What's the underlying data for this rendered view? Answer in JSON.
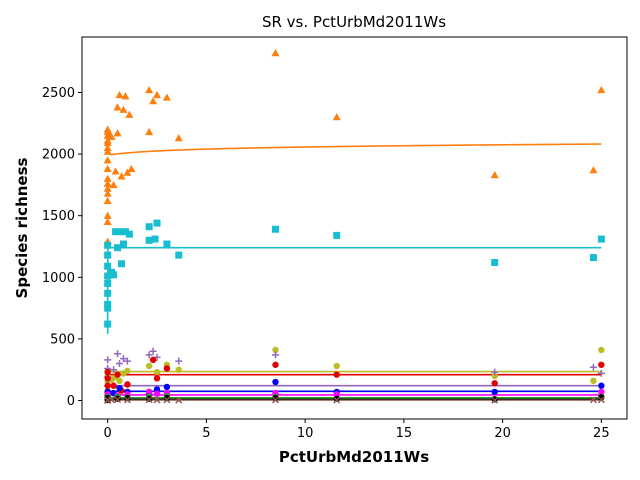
{
  "chart_data": {
    "type": "scatter",
    "title": "SR vs. PctUrbMd2011Ws",
    "xlabel": "PctUrbMd2011Ws",
    "ylabel": "Species richness",
    "xlim": [
      -1.3,
      26.3
    ],
    "ylim": [
      -150,
      2950
    ],
    "xticks": [
      0,
      5,
      10,
      15,
      20,
      25
    ],
    "yticks": [
      0,
      500,
      1000,
      1500,
      2000,
      2500
    ],
    "grid": false,
    "legend": "none",
    "series": [
      {
        "color": "#ff7f0e",
        "marker": "triangle",
        "points": [
          [
            0,
            1020
          ],
          [
            0,
            1180
          ],
          [
            0,
            1290
          ],
          [
            0,
            1450
          ],
          [
            0,
            1500
          ],
          [
            0,
            1620
          ],
          [
            0,
            1680
          ],
          [
            0,
            1720
          ],
          [
            0,
            1760
          ],
          [
            0,
            1800
          ],
          [
            0,
            1880
          ],
          [
            0,
            1950
          ],
          [
            0,
            2020
          ],
          [
            0,
            2050
          ],
          [
            0,
            2090
          ],
          [
            0,
            2110
          ],
          [
            0,
            2150
          ],
          [
            0,
            2180
          ],
          [
            0,
            2200
          ],
          [
            0.1,
            2160
          ],
          [
            0.2,
            2140
          ],
          [
            0.3,
            1750
          ],
          [
            0.4,
            1860
          ],
          [
            0.5,
            2380
          ],
          [
            0.5,
            2170
          ],
          [
            0.6,
            2480
          ],
          [
            0.7,
            1820
          ],
          [
            0.8,
            2360
          ],
          [
            0.9,
            2470
          ],
          [
            1.0,
            1850
          ],
          [
            1.1,
            2320
          ],
          [
            1.2,
            1880
          ],
          [
            2.1,
            2180
          ],
          [
            2.1,
            2520
          ],
          [
            2.3,
            2430
          ],
          [
            2.5,
            2480
          ],
          [
            3.0,
            2460
          ],
          [
            3.6,
            2130
          ],
          [
            8.5,
            2820
          ],
          [
            11.6,
            2300
          ],
          [
            19.6,
            1830
          ],
          [
            24.6,
            1870
          ],
          [
            25.0,
            2520
          ]
        ],
        "fit": {
          "a": 1990,
          "b": 28,
          "c": -25,
          "x0": 0.07
        }
      },
      {
        "color": "#17becf",
        "marker": "square",
        "points": [
          [
            0,
            620
          ],
          [
            0,
            750
          ],
          [
            0,
            780
          ],
          [
            0,
            870
          ],
          [
            0,
            950
          ],
          [
            0,
            1010
          ],
          [
            0,
            1090
          ],
          [
            0,
            1180
          ],
          [
            0,
            1260
          ],
          [
            0.2,
            1040
          ],
          [
            0.3,
            1020
          ],
          [
            0.4,
            1370
          ],
          [
            0.5,
            1240
          ],
          [
            0.6,
            1370
          ],
          [
            0.7,
            1110
          ],
          [
            0.8,
            1270
          ],
          [
            0.9,
            1370
          ],
          [
            1.1,
            1350
          ],
          [
            2.1,
            1300
          ],
          [
            2.1,
            1410
          ],
          [
            2.4,
            1310
          ],
          [
            2.5,
            1440
          ],
          [
            3.0,
            1270
          ],
          [
            3.6,
            1180
          ],
          [
            8.5,
            1390
          ],
          [
            11.6,
            1340
          ],
          [
            19.6,
            1120
          ],
          [
            24.6,
            1160
          ],
          [
            25.0,
            1310
          ]
        ],
        "fit": {
          "a": 1240,
          "b": 0,
          "c": 700,
          "x0": 0.003
        }
      },
      {
        "color": "#bcbd22",
        "marker": "circle",
        "points": [
          [
            0,
            30
          ],
          [
            0,
            80
          ],
          [
            0,
            150
          ],
          [
            0,
            200
          ],
          [
            0,
            240
          ],
          [
            0.2,
            170
          ],
          [
            0.4,
            190
          ],
          [
            0.6,
            160
          ],
          [
            0.8,
            220
          ],
          [
            1.0,
            240
          ],
          [
            2.1,
            280
          ],
          [
            2.5,
            230
          ],
          [
            3.0,
            290
          ],
          [
            3.6,
            250
          ],
          [
            8.5,
            410
          ],
          [
            11.6,
            280
          ],
          [
            19.6,
            200
          ],
          [
            24.6,
            160
          ],
          [
            25.0,
            410
          ]
        ],
        "fit": {
          "a": 235,
          "b": 0,
          "c": 195,
          "x0": 0.01
        }
      },
      {
        "color": "#9467bd",
        "marker": "plus",
        "points": [
          [
            0,
            40
          ],
          [
            0,
            120
          ],
          [
            0,
            190
          ],
          [
            0,
            260
          ],
          [
            0,
            330
          ],
          [
            0.3,
            250
          ],
          [
            0.5,
            380
          ],
          [
            0.6,
            300
          ],
          [
            0.8,
            340
          ],
          [
            1.0,
            320
          ],
          [
            2.1,
            370
          ],
          [
            2.3,
            400
          ],
          [
            2.5,
            350
          ],
          [
            3.6,
            320
          ],
          [
            8.5,
            370
          ],
          [
            19.6,
            230
          ],
          [
            24.6,
            270
          ],
          [
            25.0,
            220
          ]
        ],
        "fit": {
          "a": 120,
          "b": 0,
          "c": 5,
          "x0": 0.01
        }
      },
      {
        "color": "#e00000",
        "marker": "circle",
        "points": [
          [
            0,
            20
          ],
          [
            0,
            60
          ],
          [
            0,
            120
          ],
          [
            0,
            180
          ],
          [
            0,
            230
          ],
          [
            0.3,
            120
          ],
          [
            0.5,
            210
          ],
          [
            0.7,
            80
          ],
          [
            1.0,
            130
          ],
          [
            2.1,
            70
          ],
          [
            2.3,
            330
          ],
          [
            2.5,
            180
          ],
          [
            3.0,
            260
          ],
          [
            8.5,
            290
          ],
          [
            11.6,
            210
          ],
          [
            19.6,
            140
          ],
          [
            25.0,
            290
          ]
        ],
        "fit": {
          "a": 210,
          "b": 0,
          "c": 25,
          "x0": 0.01
        }
      },
      {
        "color": "#0000ff",
        "marker": "circle",
        "points": [
          [
            0,
            10
          ],
          [
            0,
            40
          ],
          [
            0,
            70
          ],
          [
            0.3,
            60
          ],
          [
            0.6,
            100
          ],
          [
            1.0,
            70
          ],
          [
            2.1,
            60
          ],
          [
            2.5,
            90
          ],
          [
            3.0,
            110
          ],
          [
            8.5,
            150
          ],
          [
            11.6,
            70
          ],
          [
            19.6,
            70
          ],
          [
            25.0,
            120
          ]
        ],
        "fit": {
          "a": 75,
          "b": 0,
          "c": 22,
          "x0": 0.01
        }
      },
      {
        "color": "#ff00ff",
        "marker": "circle",
        "points": [
          [
            0,
            20
          ],
          [
            0,
            50
          ],
          [
            0.5,
            40
          ],
          [
            1.0,
            50
          ],
          [
            2.1,
            70
          ],
          [
            2.5,
            55
          ],
          [
            3.0,
            60
          ],
          [
            8.5,
            60
          ],
          [
            11.6,
            50
          ],
          [
            25.0,
            70
          ]
        ],
        "fit": {
          "a": 45,
          "b": 0,
          "c": 4,
          "x0": 0.01
        }
      },
      {
        "color": "#2ca02c",
        "marker": "circle",
        "points": [
          [
            0,
            10
          ],
          [
            0,
            30
          ],
          [
            0.5,
            30
          ],
          [
            1.0,
            25
          ],
          [
            2.1,
            30
          ],
          [
            3.0,
            35
          ],
          [
            8.5,
            30
          ],
          [
            25.0,
            30
          ]
        ],
        "fit": {
          "a": 22,
          "b": 0,
          "c": 2,
          "x0": 0.01
        }
      },
      {
        "color": "#000000",
        "marker": "circle",
        "points": [
          [
            0,
            5
          ],
          [
            0,
            20
          ],
          [
            0.5,
            15
          ],
          [
            1.0,
            20
          ],
          [
            2.1,
            15
          ],
          [
            3.0,
            20
          ],
          [
            8.5,
            20
          ],
          [
            11.6,
            15
          ],
          [
            19.6,
            10
          ],
          [
            25.0,
            25
          ]
        ],
        "fit": {
          "a": 15,
          "b": 0,
          "c": 1,
          "x0": 0.01
        }
      },
      {
        "color": "#8c564b",
        "marker": "x",
        "points": [
          [
            0,
            0
          ],
          [
            0,
            5
          ],
          [
            0.2,
            5
          ],
          [
            0.5,
            8
          ],
          [
            1.0,
            5
          ],
          [
            2.1,
            6
          ],
          [
            2.5,
            4
          ],
          [
            3.0,
            5
          ],
          [
            3.6,
            3
          ],
          [
            8.5,
            5
          ],
          [
            11.6,
            3
          ],
          [
            19.6,
            2
          ],
          [
            24.6,
            5
          ],
          [
            25.0,
            6
          ]
        ],
        "fit": {
          "a": 5,
          "b": 0,
          "c": 0,
          "x0": 0.01
        }
      }
    ]
  }
}
